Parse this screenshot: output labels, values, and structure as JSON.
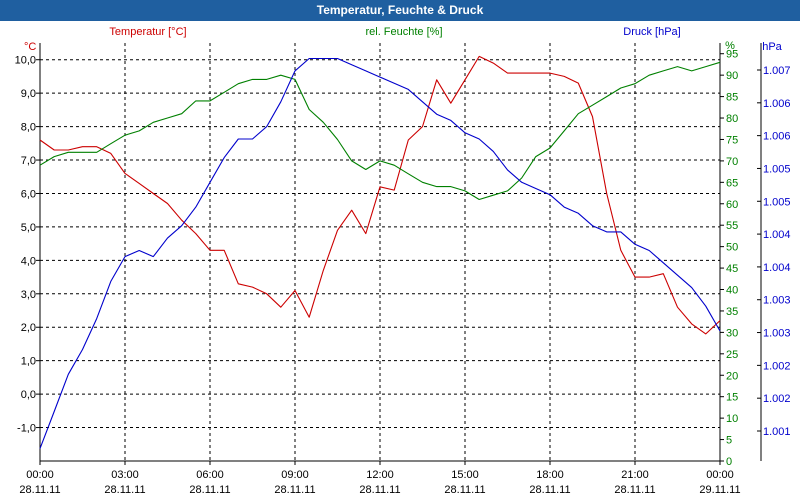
{
  "window": {
    "title": "Temperatur, Feuchte & Druck"
  },
  "chart_data": {
    "type": "line",
    "title": "Temperatur, Feuchte & Druck",
    "grid": true,
    "colors": {
      "temperature": "#cc0000",
      "humidity": "#008000",
      "pressure": "#0000cc",
      "grid": "#000000",
      "title_bar": "#1f5fa0"
    },
    "x_ticks": [
      {
        "time": "00:00",
        "date": "28.11.11"
      },
      {
        "time": "03:00",
        "date": "28.11.11"
      },
      {
        "time": "06:00",
        "date": "28.11.11"
      },
      {
        "time": "09:00",
        "date": "28.11.11"
      },
      {
        "time": "12:00",
        "date": "28.11.11"
      },
      {
        "time": "15:00",
        "date": "28.11.11"
      },
      {
        "time": "18:00",
        "date": "28.11.11"
      },
      {
        "time": "21:00",
        "date": "28.11.11"
      },
      {
        "time": "00:00",
        "date": "29.11.11"
      }
    ],
    "x_hours": [
      0,
      0.5,
      1,
      1.5,
      2,
      2.5,
      3,
      3.5,
      4,
      4.5,
      5,
      5.5,
      6,
      6.5,
      7,
      7.5,
      8,
      8.5,
      9,
      9.5,
      10,
      10.5,
      11,
      11.5,
      12,
      12.5,
      13,
      13.5,
      14,
      14.5,
      15,
      15.5,
      16,
      16.5,
      17,
      17.5,
      18,
      18.5,
      19,
      19.5,
      20,
      20.5,
      21,
      21.5,
      22,
      22.5,
      23,
      23.5,
      24
    ],
    "axes": {
      "temperature": {
        "label": "Temperatur [°C]",
        "unit": "°C",
        "ylim": [
          -2,
          10.5
        ],
        "ticks": [
          "10,0",
          "9,0",
          "8,0",
          "7,0",
          "6,0",
          "5,0",
          "4,0",
          "3,0",
          "2,0",
          "1,0",
          "0,0",
          "-1,0"
        ]
      },
      "humidity": {
        "label": "rel. Feuchte [%]",
        "unit": "%",
        "ylim": [
          0,
          97.5
        ],
        "ticks": [
          "95",
          "90",
          "85",
          "80",
          "75",
          "70",
          "65",
          "60",
          "55",
          "50",
          "45",
          "40",
          "35",
          "30",
          "25",
          "20",
          "15",
          "10",
          "5",
          "0"
        ]
      },
      "pressure": {
        "label": "Druck [hPa]",
        "unit": "hPa",
        "ylim": [
          1000.6,
          1007.35
        ],
        "ticks": [
          "1.007",
          "1.006",
          "1.006",
          "1.005",
          "1.005",
          "1.004",
          "1.004",
          "1.003",
          "1.003",
          "1.002",
          "1.002",
          "1.001"
        ]
      }
    },
    "series": [
      {
        "name": "Temperatur [°C]",
        "axis": "temperature",
        "values": [
          7.6,
          7.3,
          7.3,
          7.4,
          7.4,
          7.2,
          6.6,
          6.3,
          6.0,
          5.7,
          5.2,
          4.8,
          4.3,
          4.3,
          3.3,
          3.2,
          3.0,
          2.6,
          3.1,
          2.3,
          3.7,
          4.9,
          5.5,
          4.8,
          6.2,
          6.1,
          7.6,
          8.0,
          9.4,
          8.7,
          9.4,
          10.1,
          9.9,
          9.6,
          9.6,
          9.6,
          9.6,
          9.5,
          9.3,
          8.3,
          6.0,
          4.3,
          3.5,
          3.5,
          3.6,
          2.6,
          2.1,
          1.8,
          2.2
        ]
      },
      {
        "name": "rel. Feuchte [%]",
        "axis": "humidity",
        "values": [
          69,
          71,
          72,
          72,
          72,
          74,
          76,
          77,
          79,
          80,
          81,
          84,
          84,
          86,
          88,
          89,
          89,
          90,
          89,
          82,
          79,
          75,
          70,
          68,
          70,
          69,
          67,
          65,
          64,
          64,
          63,
          61,
          62,
          63,
          66,
          71,
          73,
          77,
          81,
          83,
          85,
          87,
          88,
          90,
          91,
          92,
          91,
          92,
          93
        ]
      },
      {
        "name": "Druck [hPa]",
        "axis": "pressure",
        "values": [
          1000.8,
          1001.4,
          1002.0,
          1002.4,
          1002.9,
          1003.5,
          1003.9,
          1004.0,
          1003.9,
          1004.2,
          1004.4,
          1004.7,
          1005.1,
          1005.5,
          1005.8,
          1005.8,
          1006.0,
          1006.4,
          1006.9,
          1007.1,
          1007.1,
          1007.1,
          1007.0,
          1006.9,
          1006.8,
          1006.7,
          1006.6,
          1006.4,
          1006.2,
          1006.1,
          1005.9,
          1005.8,
          1005.6,
          1005.3,
          1005.1,
          1005.0,
          1004.9,
          1004.7,
          1004.6,
          1004.4,
          1004.3,
          1004.3,
          1004.1,
          1004.0,
          1003.8,
          1003.6,
          1003.4,
          1003.1,
          1002.7
        ]
      }
    ]
  }
}
